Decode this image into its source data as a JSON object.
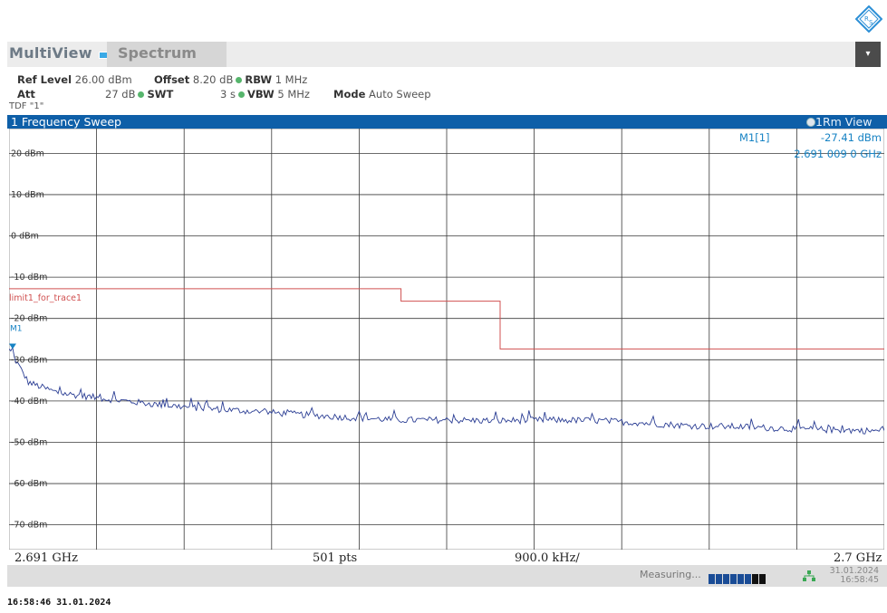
{
  "header": {
    "tab_multiview": "MultiView",
    "tab_spectrum": "Spectrum"
  },
  "settings": {
    "ref_level_label": "Ref Level",
    "ref_level_value": "26.00 dBm",
    "offset_label": "Offset",
    "offset_value": "8.20 dB",
    "rbw_label": "RBW",
    "rbw_value": "1 MHz",
    "att_label": "Att",
    "att_value": "27 dB",
    "swt_label": "SWT",
    "swt_value": "3 s",
    "vbw_label": "VBW",
    "vbw_value": "5 MHz",
    "mode_label": "Mode",
    "mode_value": "Auto Sweep",
    "tdf": "TDF \"1\""
  },
  "window": {
    "title": "1 Frequency Sweep",
    "view": "1Rm View"
  },
  "marker": {
    "name": "M1[1]",
    "level": "-27.41 dBm",
    "freq": "2.691 009 0 GHz",
    "plot_tag": "M1"
  },
  "status": {
    "start": "2.691 GHz",
    "points": "501 pts",
    "span_div": "900.0 kHz/",
    "stop": "2.7 GHz"
  },
  "footer": {
    "measuring": "Measuring...",
    "date": "31.01.2024",
    "time": "16:58:45",
    "timestamp": "16:58:46  31.01.2024"
  },
  "colors": {
    "trace": "#2b3e94",
    "limit": "#d05050",
    "marker": "#1783c4",
    "title_bar": "#0e5fa8"
  },
  "chart_data": {
    "type": "line",
    "title": "1 Frequency Sweep",
    "xlabel": "",
    "ylabel": "",
    "x_start_ghz": 2.691,
    "x_stop_ghz": 2.7,
    "ylim": [
      -76,
      26
    ],
    "y_ticks": [
      20,
      10,
      0,
      -10,
      -20,
      -30,
      -40,
      -50,
      -60,
      -70
    ],
    "y_tick_labels": [
      "20 dBm",
      "10 dBm",
      "0 dBm",
      "-10 dBm",
      "-20 dBm",
      "-30 dBm",
      "-40 dBm",
      "-50 dBm",
      "-60 dBm",
      "-70 dBm"
    ],
    "grid": true,
    "series": [
      {
        "name": "",
        "x_ghz": [
          2.691,
          2.6912,
          2.6915,
          2.692,
          2.6925,
          2.693,
          2.6935,
          2.694,
          2.6945,
          2.695,
          2.6955,
          2.696,
          2.6965,
          2.697,
          2.6975,
          2.698,
          2.6985,
          2.699,
          2.6995,
          2.7
        ],
        "values": [
          -27.4,
          -35.5,
          -38.0,
          -39.5,
          -40.8,
          -41.8,
          -42.5,
          -43.3,
          -44.0,
          -44.6,
          -44.6,
          -44.8,
          -44.6,
          -44.7,
          -45.3,
          -46.0,
          -46.2,
          -46.7,
          -47.0,
          -47.3
        ]
      }
    ],
    "limit_line": {
      "name": "limit1_for_trace1",
      "x_ghz": [
        2.691,
        2.69503,
        2.69503,
        2.69605,
        2.69605,
        2.7
      ],
      "values": [
        -12.8,
        -12.8,
        -15.8,
        -15.8,
        -27.4,
        -27.4
      ]
    },
    "marker": {
      "name": "M1",
      "x_ghz": 2.691009,
      "value": -27.41
    }
  }
}
